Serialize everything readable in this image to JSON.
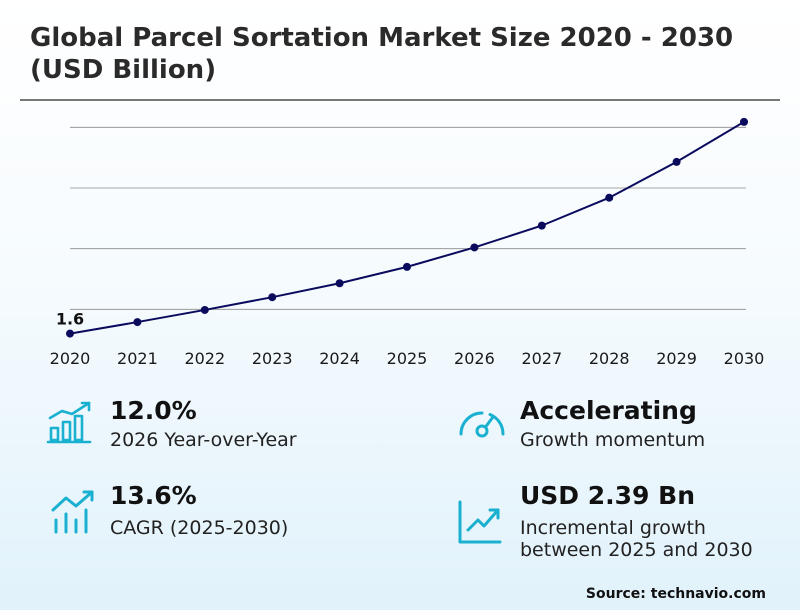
{
  "title": "Global Parcel Sortation Market Size 2020 - 2030 (USD Billion)",
  "chart_data": {
    "type": "line",
    "title": "Global Parcel Sortation Market Size 2020 - 2030 (USD Billion)",
    "categories": [
      "2020",
      "2021",
      "2022",
      "2023",
      "2024",
      "2025",
      "2026",
      "2027",
      "2028",
      "2029",
      "2030"
    ],
    "series": [
      {
        "values": [
          1.6,
          1.79,
          1.99,
          2.2,
          2.43,
          2.7,
          3.02,
          3.38,
          3.84,
          4.43,
          5.09
        ]
      }
    ],
    "data_labels": [
      {
        "index": 0,
        "text": "1.6"
      }
    ],
    "ylim": [
      1.0,
      5.5
    ],
    "gridlines": [
      2.0,
      3.0,
      4.0,
      5.0
    ],
    "line_color": "#0b0b5e",
    "grid": true,
    "legend": "none"
  },
  "stats": [
    {
      "icon": "bar-chart-growth-icon",
      "value": "12.0%",
      "caption": [
        "2026 Year-over-Year"
      ]
    },
    {
      "icon": "speedometer-icon",
      "value": "Accelerating",
      "caption": [
        "Growth momentum"
      ]
    },
    {
      "icon": "trend-bars-icon",
      "value": "13.6%",
      "caption": [
        "CAGR (2025-2030)"
      ]
    },
    {
      "icon": "line-chart-icon",
      "value": "USD 2.39 Bn",
      "caption": [
        "Incremental growth",
        "between 2025 and 2030"
      ]
    }
  ],
  "icon_color": "#1ab0d0",
  "source": "Source: technavio.com"
}
